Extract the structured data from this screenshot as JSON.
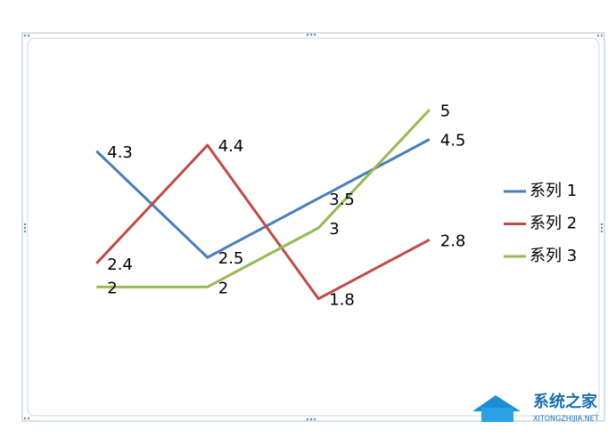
{
  "chart_data": {
    "type": "line",
    "categories": [
      null,
      null,
      null,
      null
    ],
    "series": [
      {
        "name": "系列 1",
        "color": "#4a7ebb",
        "values": [
          4.3,
          2.5,
          3.5,
          4.5
        ]
      },
      {
        "name": "系列 2",
        "color": "#be4b48",
        "values": [
          2.4,
          4.4,
          1.8,
          2.8
        ]
      },
      {
        "name": "系列 3",
        "color": "#98b954",
        "values": [
          2,
          2,
          3,
          5
        ]
      }
    ],
    "ylim": [
      0,
      6
    ],
    "legend": "right"
  },
  "watermark": {
    "title": "系统之家",
    "url": "XITONGZHIJIA.NET"
  }
}
